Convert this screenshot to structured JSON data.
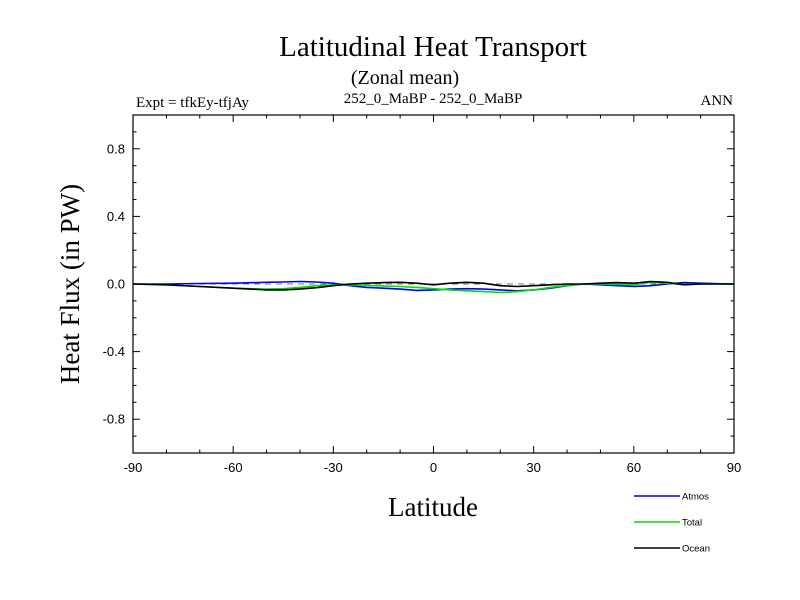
{
  "chart_data": {
    "type": "line",
    "title": "Latitudinal Heat Transport",
    "subtitle": "(Zonal mean)",
    "left_label": "Expt = tfkEy-tfjAy",
    "center_label": "252_0_MaBP - 252_0_MaBP",
    "right_label": "ANN",
    "xlabel": "Latitude",
    "ylabel": "Heat Flux (in PW)",
    "xlim": [
      -90,
      90
    ],
    "ylim": [
      -1.0,
      1.0
    ],
    "x_ticks": [
      -90,
      -60,
      -30,
      0,
      30,
      60,
      90
    ],
    "x_tick_labels": [
      "-90",
      "-60",
      "-30",
      "0",
      "30",
      "60",
      "90"
    ],
    "y_ticks": [
      -0.8,
      -0.4,
      0.0,
      0.4,
      0.8
    ],
    "y_tick_labels": [
      "-0.8",
      "-0.4",
      "0.0",
      "0.4",
      "0.8"
    ],
    "grid": false,
    "zero_line": "dashed",
    "legend_position": "bottom-right",
    "series": [
      {
        "name": "Atmos",
        "color": "#0000ff",
        "x": [
          -90,
          -80,
          -70,
          -60,
          -50,
          -45,
          -40,
          -35,
          -30,
          -25,
          -20,
          -15,
          -10,
          -5,
          0,
          5,
          10,
          15,
          20,
          25,
          30,
          35,
          40,
          45,
          50,
          55,
          60,
          65,
          70,
          75,
          80,
          85,
          90
        ],
        "y": [
          0.0,
          0.0,
          0.003,
          0.005,
          0.01,
          0.012,
          0.015,
          0.012,
          0.005,
          -0.01,
          -0.02,
          -0.025,
          -0.03,
          -0.038,
          -0.035,
          -0.03,
          -0.028,
          -0.03,
          -0.035,
          -0.04,
          -0.035,
          -0.025,
          -0.01,
          0.0,
          -0.005,
          -0.01,
          -0.015,
          -0.01,
          0.0,
          0.008,
          0.005,
          0.002,
          0.0
        ]
      },
      {
        "name": "Total",
        "color": "#00dd00",
        "x": [
          -90,
          -80,
          -70,
          -60,
          -50,
          -45,
          -40,
          -35,
          -30,
          -25,
          -20,
          -15,
          -10,
          -5,
          0,
          5,
          10,
          15,
          20,
          25,
          30,
          35,
          40,
          45,
          50,
          55,
          60,
          65,
          70,
          75,
          80,
          85,
          90
        ],
        "y": [
          0.0,
          -0.005,
          -0.015,
          -0.025,
          -0.03,
          -0.028,
          -0.02,
          -0.01,
          -0.005,
          -0.005,
          -0.008,
          -0.012,
          -0.015,
          -0.02,
          -0.028,
          -0.035,
          -0.04,
          -0.045,
          -0.05,
          -0.045,
          -0.035,
          -0.02,
          -0.008,
          0.0,
          0.0,
          -0.002,
          -0.005,
          0.01,
          0.005,
          -0.002,
          0.0,
          0.0,
          0.0
        ]
      },
      {
        "name": "Ocean",
        "color": "#000000",
        "x": [
          -90,
          -80,
          -70,
          -60,
          -50,
          -45,
          -40,
          -35,
          -30,
          -25,
          -20,
          -15,
          -10,
          -5,
          0,
          5,
          10,
          15,
          20,
          25,
          30,
          35,
          40,
          45,
          50,
          55,
          60,
          65,
          70,
          75,
          80,
          85,
          90
        ],
        "y": [
          0.0,
          -0.005,
          -0.015,
          -0.025,
          -0.035,
          -0.035,
          -0.03,
          -0.022,
          -0.01,
          0.0,
          0.005,
          0.008,
          0.01,
          0.005,
          -0.005,
          0.005,
          0.01,
          0.005,
          -0.01,
          -0.015,
          -0.01,
          -0.005,
          0.0,
          0.0,
          0.005,
          0.008,
          0.005,
          0.015,
          0.01,
          -0.005,
          0.0,
          0.0,
          0.0
        ]
      }
    ]
  }
}
